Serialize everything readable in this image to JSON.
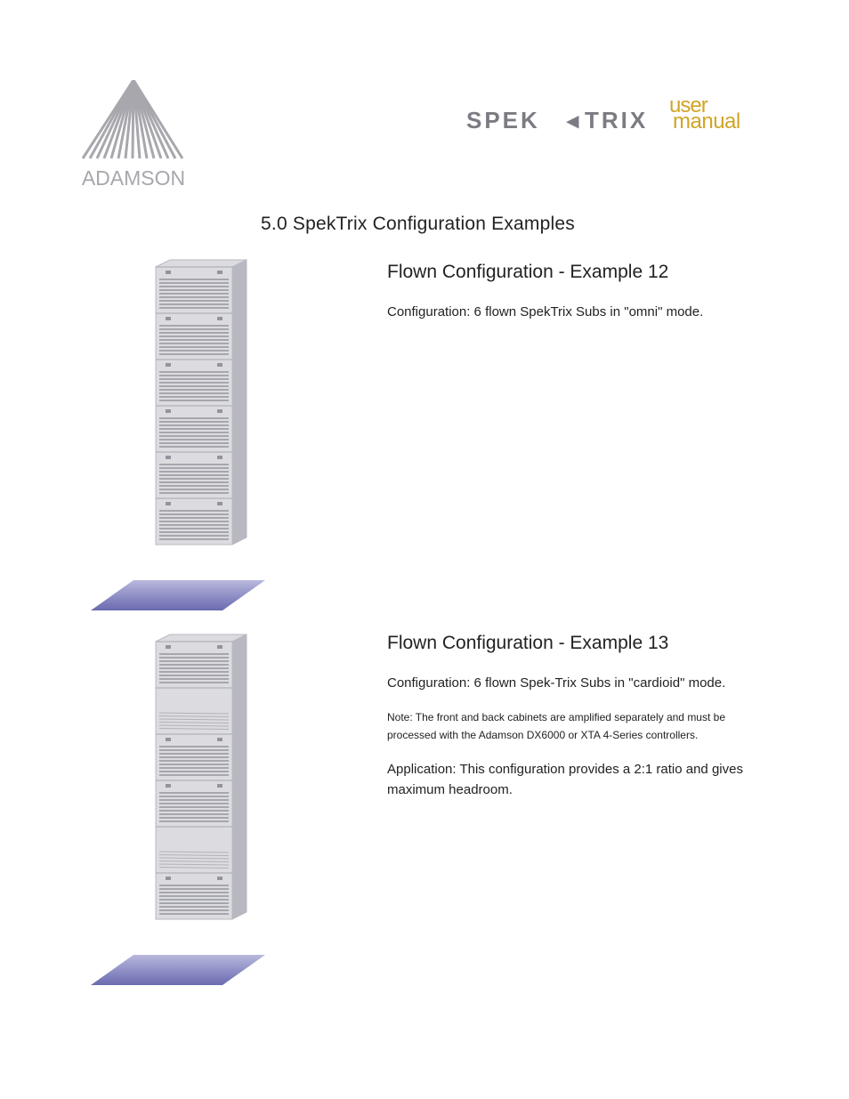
{
  "brand_logo": {
    "name": "ADAMSON",
    "color": "#a7a7ad"
  },
  "brand_right": {
    "line1": "SPEK",
    "line1b": "TRIX",
    "user": "user",
    "manual": "manual",
    "spek_color": "#7b7b83",
    "user_color": "#d1a426",
    "manual_color": "#d1a426"
  },
  "section_title": "5.0 SpekTrix Configuration Examples",
  "examples": [
    {
      "title": "Flown Configuration - Example 12",
      "config": "Configuration: 6 flown SpekTrix Subs in \"omni\" mode.",
      "note": "",
      "application": "",
      "speaker": {
        "modules": 6,
        "body_color": "#dcdce0",
        "edge_color": "#b8b8c0",
        "grille_color": "#94949e",
        "grille_pattern": "all_front"
      }
    },
    {
      "title": "Flown Configuration - Example 13",
      "config": "Configuration: 6 flown Spek-Trix Subs in \"cardioid\" mode.",
      "note": "Note: The front and back cabinets are amplified separately and must be processed with the Adamson DX6000  or XTA 4-Series controllers.",
      "application": "Application: This configuration provides a 2:1 ratio and gives maximum headroom.",
      "speaker": {
        "modules": 6,
        "body_color": "#dcdce0",
        "edge_color": "#b8b8c0",
        "grille_color": "#94949e",
        "grille_pattern": "cardioid"
      }
    }
  ],
  "shadow": {
    "color_top": "#9696c8",
    "color_bottom": "#5a5aa8",
    "width": 196,
    "height": 34
  }
}
